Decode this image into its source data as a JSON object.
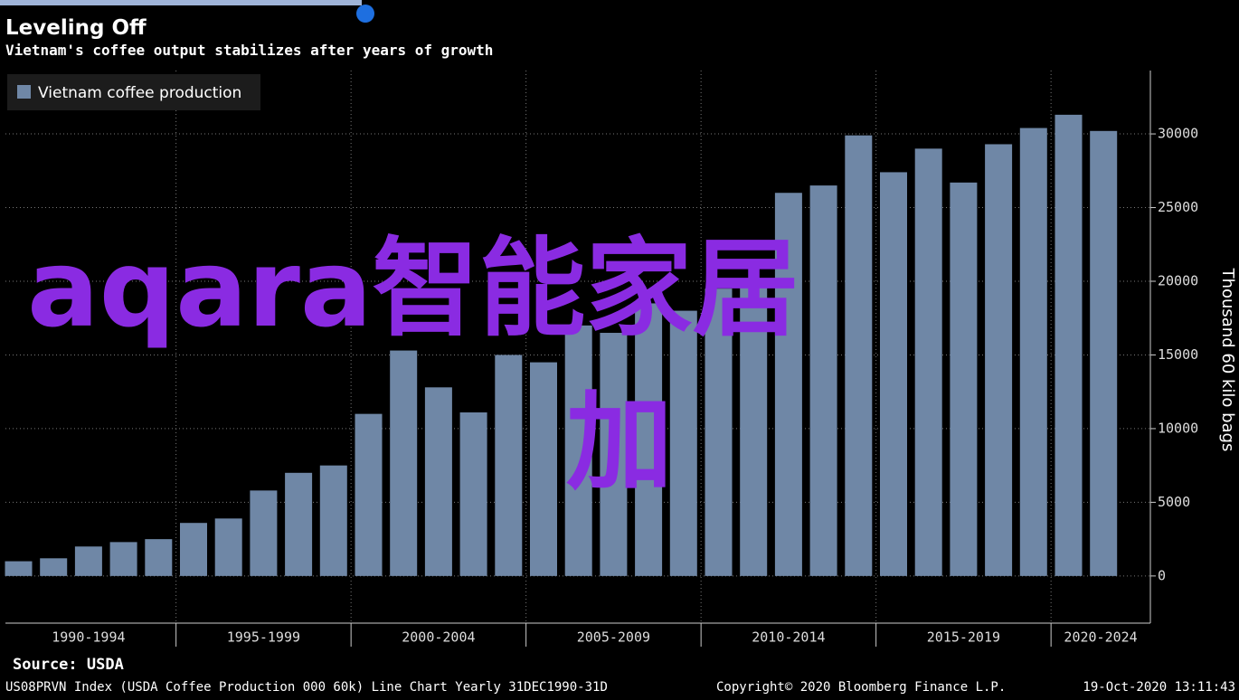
{
  "chart_data": {
    "type": "bar",
    "title": "Leveling Off",
    "subtitle": "Vietnam's coffee output stabilizes after years of growth",
    "y_axis_label": "Thousand 60 kilo bags",
    "legend_position": "top-left",
    "categories": [
      null,
      null,
      null,
      null,
      null,
      null,
      null,
      null,
      null,
      null,
      null,
      null,
      null,
      null,
      null,
      null,
      null,
      null,
      null,
      null,
      null,
      null,
      null,
      null,
      null,
      null,
      null,
      null,
      null,
      null,
      null,
      null
    ],
    "period_labels": [
      "1990-1994",
      "1995-1999",
      "2000-2004",
      "2005-2009",
      "2010-2014",
      "2015-2019",
      "2020-2024"
    ],
    "series": [
      {
        "name": "Vietnam coffee production",
        "color": "#6f87a6",
        "values": [
          1000,
          1200,
          2000,
          2300,
          2500,
          3600,
          3900,
          5800,
          7000,
          7500,
          11000,
          15300,
          12800,
          11100,
          15000,
          14500,
          17000,
          16500,
          18500,
          18000,
          19500,
          20000,
          26000,
          26500,
          29900,
          27400,
          29000,
          26700,
          29300,
          30400,
          31300,
          30200
        ]
      }
    ],
    "ylim": [
      -3200,
      34300
    ],
    "yticks": [
      0,
      5000,
      10000,
      15000,
      20000,
      25000,
      30000
    ],
    "grid": true,
    "source": "Source: USDA",
    "footer": [
      "US08PRVN Index (USDA Coffee Production 000 60k) Line Chart  Yearly 31DEC1990-31D",
      "Copyright© 2020 Bloomberg Finance L.P.",
      "19-Oct-2020 13:11:43"
    ],
    "watermark": [
      "aqara智能家居",
      "加"
    ]
  }
}
